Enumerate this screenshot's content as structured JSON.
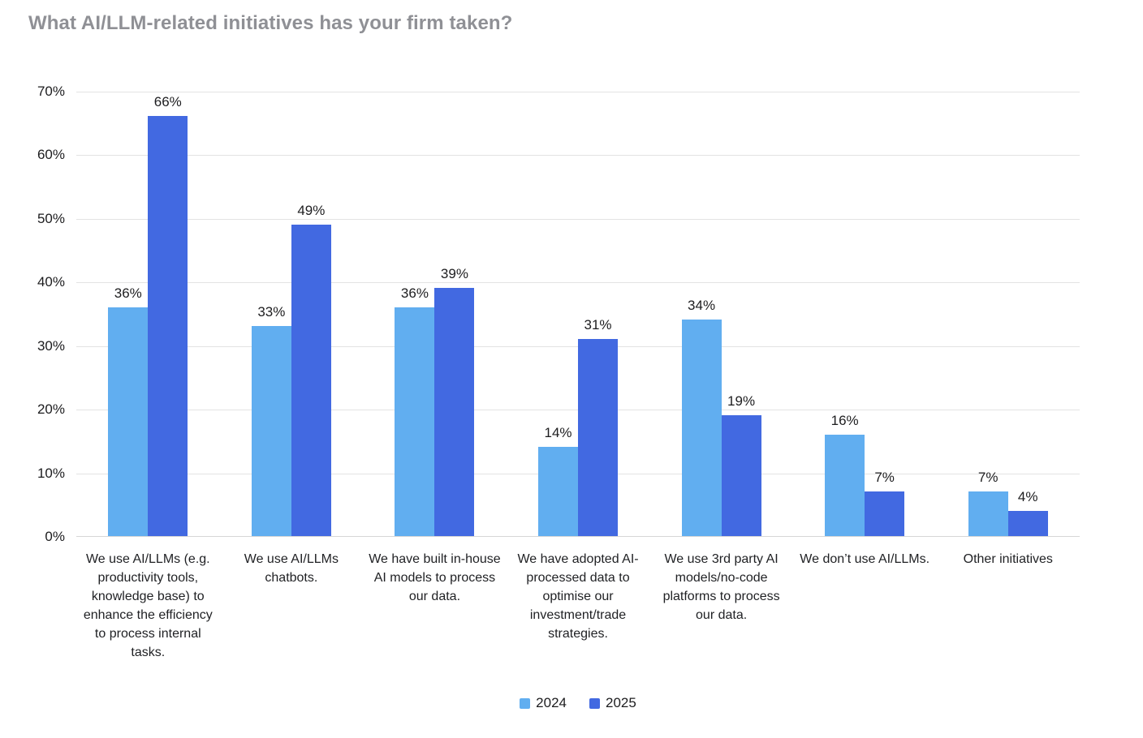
{
  "page": {
    "title": "What AI/LLM-related initiatives has your firm taken?"
  },
  "colors": {
    "series_2024": "#61AEF0",
    "series_2025": "#4269E1",
    "gridline": "#E3E3E3",
    "baseline": "#D6D6D6",
    "title_text": "#8F9095",
    "axis_text": "#1C1C1E"
  },
  "chart_data": {
    "type": "bar",
    "title": "What AI/LLM-related initiatives has your firm taken?",
    "categories": [
      "We use AI/LLMs (e.g. productivity tools, knowledge base) to enhance the efficiency to process internal tasks.",
      "We use AI/LLMs chatbots.",
      "We have built in-house AI models to process our data.",
      "We have adopted AI-processed data to optimise our investment/trade strategies.",
      "We use 3rd party AI models/no-code platforms to process our data.",
      "We don’t use AI/LLMs.",
      "Other initiatives"
    ],
    "series": [
      {
        "name": "2024",
        "color": "#61AEF0",
        "values": [
          36,
          33,
          36,
          14,
          34,
          16,
          7
        ]
      },
      {
        "name": "2025",
        "color": "#4269E1",
        "values": [
          66,
          49,
          39,
          31,
          19,
          7,
          4
        ]
      }
    ],
    "xlabel": "",
    "ylabel": "",
    "ylim": [
      0,
      70
    ],
    "yticks": [
      0,
      10,
      20,
      30,
      40,
      50,
      60,
      70
    ],
    "ytick_suffix": "%",
    "value_label_suffix": "%",
    "grid": true,
    "legend_position": "bottom"
  },
  "legend": {
    "items": [
      {
        "label": "2024",
        "color": "#61AEF0"
      },
      {
        "label": "2025",
        "color": "#4269E1"
      }
    ]
  }
}
